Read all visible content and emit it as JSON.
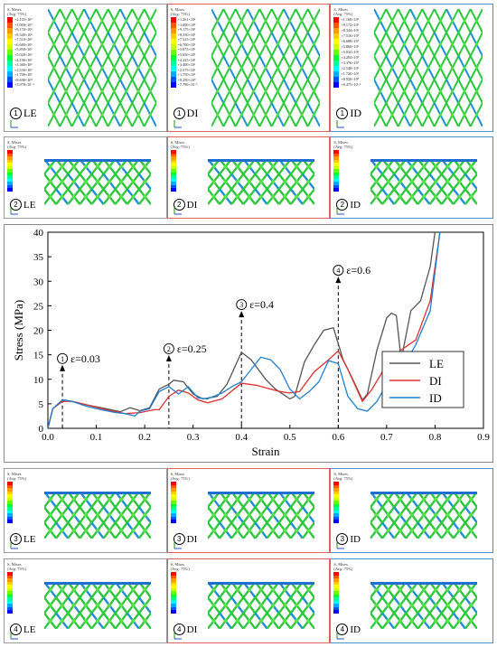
{
  "legend": {
    "title_line1": "S, Mises",
    "title_line2": "(Avg: 75%)",
    "colors": [
      "#ff0000",
      "#ff5500",
      "#ff9900",
      "#ffcc00",
      "#ffff00",
      "#ccff00",
      "#66ff00",
      "#00ff33",
      "#00ff99",
      "#00ffff",
      "#00aaff",
      "#0055ff",
      "#0000ff"
    ]
  },
  "rows": [
    {
      "panels": [
        {
          "num": "1",
          "name": "LE",
          "color": "#9a9a9a",
          "values": [
            "+2.103×10²",
            "+1.000×10²",
            "+9.170×10¹",
            "+8.340×10¹",
            "+7.510×10¹",
            "+6.680×10¹",
            "+5.850×10¹",
            "+5.020×10¹",
            "+4.190×10¹",
            "+3.360×10¹",
            "+2.530×10¹",
            "+1.700×10¹",
            "+8.698×10⁰",
            "+3.978×10⁻¹"
          ]
        },
        {
          "num": "1",
          "name": "DI",
          "color": "#e06060",
          "values": [
            "+1.261×10²",
            "+1.000×10²",
            "+9.175×10¹",
            "+8.350×10¹",
            "+7.525×10¹",
            "+6.700×10¹",
            "+5.875×10¹",
            "+5.050×10¹",
            "+4.225×10¹",
            "+3.400×10¹",
            "+2.575×10¹",
            "+1.750×10¹",
            "+9.250×10⁰",
            "+7.789×10⁻¹"
          ]
        },
        {
          "num": "1",
          "name": "ID",
          "color": "#4a90d0",
          "values": [
            "+1.100×10²",
            "+9.172×10¹",
            "+8.344×10¹",
            "+7.516×10¹",
            "+6.688×10¹",
            "+5.860×10¹",
            "+5.032×10¹",
            "+4.204×10¹",
            "+3.376×10¹",
            "+2.548×10¹",
            "+1.720×10¹",
            "+8.920×10⁰",
            "+6.475×10⁻¹"
          ]
        }
      ]
    },
    {
      "panels": [
        {
          "num": "2",
          "name": "LE",
          "color": "#9a9a9a"
        },
        {
          "num": "2",
          "name": "DI",
          "color": "#e06060"
        },
        {
          "num": "2",
          "name": "ID",
          "color": "#4a90d0"
        }
      ]
    },
    {
      "panels": [
        {
          "num": "3",
          "name": "LE",
          "color": "#9a9a9a"
        },
        {
          "num": "3",
          "name": "DI",
          "color": "#e06060"
        },
        {
          "num": "3",
          "name": "ID",
          "color": "#4a90d0"
        }
      ]
    },
    {
      "panels": [
        {
          "num": "4",
          "name": "LE",
          "color": "#9a9a9a"
        },
        {
          "num": "4",
          "name": "DI",
          "color": "#e06060"
        },
        {
          "num": "4",
          "name": "ID",
          "color": "#4a90d0"
        }
      ]
    }
  ],
  "chart_data": {
    "type": "line",
    "xlabel": "Strain",
    "ylabel": "Stress (MPa)",
    "xlim": [
      0,
      0.9
    ],
    "ylim": [
      0,
      40
    ],
    "xticks": [
      "0.0",
      "0.1",
      "0.2",
      "0.3",
      "0.4",
      "0.5",
      "0.6",
      "0.7",
      "0.8",
      "0.9"
    ],
    "yticks": [
      "0",
      "5",
      "10",
      "15",
      "20",
      "25",
      "30",
      "35",
      "40"
    ],
    "legend_position": "right",
    "series": [
      {
        "name": "LE",
        "color": "#555555",
        "points": [
          [
            0,
            0
          ],
          [
            0.01,
            4
          ],
          [
            0.03,
            5.8
          ],
          [
            0.05,
            5.5
          ],
          [
            0.08,
            4.8
          ],
          [
            0.12,
            4.0
          ],
          [
            0.15,
            3.4
          ],
          [
            0.17,
            4.2
          ],
          [
            0.19,
            3.6
          ],
          [
            0.21,
            4.2
          ],
          [
            0.23,
            8.0
          ],
          [
            0.25,
            9.0
          ],
          [
            0.26,
            9.8
          ],
          [
            0.28,
            9.5
          ],
          [
            0.3,
            7.0
          ],
          [
            0.32,
            6.0
          ],
          [
            0.35,
            6.5
          ],
          [
            0.37,
            9.0
          ],
          [
            0.4,
            15.5
          ],
          [
            0.42,
            14.0
          ],
          [
            0.45,
            10.0
          ],
          [
            0.47,
            8.0
          ],
          [
            0.5,
            6.0
          ],
          [
            0.51,
            6.5
          ],
          [
            0.53,
            13.5
          ],
          [
            0.55,
            17.0
          ],
          [
            0.57,
            20.0
          ],
          [
            0.59,
            20.5
          ],
          [
            0.61,
            14.0
          ],
          [
            0.63,
            10.0
          ],
          [
            0.65,
            5.8
          ],
          [
            0.66,
            7.0
          ],
          [
            0.68,
            16.0
          ],
          [
            0.7,
            22.5
          ],
          [
            0.71,
            23.5
          ],
          [
            0.72,
            23.0
          ],
          [
            0.73,
            14.0
          ],
          [
            0.75,
            24.0
          ],
          [
            0.77,
            26.0
          ],
          [
            0.79,
            33.0
          ],
          [
            0.8,
            40.0
          ]
        ]
      },
      {
        "name": "DI",
        "color": "#e03030",
        "points": [
          [
            0,
            0
          ],
          [
            0.01,
            4
          ],
          [
            0.03,
            5.5
          ],
          [
            0.05,
            5.5
          ],
          [
            0.08,
            4.8
          ],
          [
            0.12,
            3.8
          ],
          [
            0.16,
            3.0
          ],
          [
            0.19,
            3.2
          ],
          [
            0.22,
            3.8
          ],
          [
            0.23,
            3.8
          ],
          [
            0.25,
            6.5
          ],
          [
            0.27,
            7.8
          ],
          [
            0.29,
            7.2
          ],
          [
            0.31,
            5.8
          ],
          [
            0.33,
            5.2
          ],
          [
            0.36,
            6.0
          ],
          [
            0.4,
            9.2
          ],
          [
            0.43,
            8.8
          ],
          [
            0.46,
            8.0
          ],
          [
            0.48,
            7.5
          ],
          [
            0.5,
            7.2
          ],
          [
            0.52,
            7.5
          ],
          [
            0.55,
            11.5
          ],
          [
            0.58,
            14.0
          ],
          [
            0.6,
            15.8
          ],
          [
            0.62,
            12.0
          ],
          [
            0.65,
            5.5
          ],
          [
            0.67,
            8.0
          ],
          [
            0.7,
            13.0
          ],
          [
            0.73,
            16.0
          ],
          [
            0.76,
            18.0
          ],
          [
            0.79,
            26.0
          ],
          [
            0.81,
            40.0
          ]
        ]
      },
      {
        "name": "ID",
        "color": "#2080d0",
        "points": [
          [
            0,
            0
          ],
          [
            0.01,
            4
          ],
          [
            0.03,
            5.8
          ],
          [
            0.05,
            5.5
          ],
          [
            0.08,
            4.5
          ],
          [
            0.11,
            3.8
          ],
          [
            0.14,
            3.2
          ],
          [
            0.16,
            3.0
          ],
          [
            0.18,
            2.5
          ],
          [
            0.19,
            3.5
          ],
          [
            0.21,
            4.0
          ],
          [
            0.23,
            7.5
          ],
          [
            0.25,
            8.5
          ],
          [
            0.27,
            7.0
          ],
          [
            0.29,
            8.5
          ],
          [
            0.31,
            6.2
          ],
          [
            0.33,
            6.0
          ],
          [
            0.36,
            7.2
          ],
          [
            0.38,
            8.5
          ],
          [
            0.4,
            9.5
          ],
          [
            0.42,
            12.0
          ],
          [
            0.44,
            14.5
          ],
          [
            0.46,
            14.0
          ],
          [
            0.48,
            12.0
          ],
          [
            0.5,
            8.0
          ],
          [
            0.52,
            6.0
          ],
          [
            0.54,
            7.5
          ],
          [
            0.56,
            9.5
          ],
          [
            0.58,
            13.8
          ],
          [
            0.6,
            13.2
          ],
          [
            0.62,
            6.5
          ],
          [
            0.64,
            4.0
          ],
          [
            0.66,
            3.5
          ],
          [
            0.68,
            5.5
          ],
          [
            0.7,
            9.0
          ],
          [
            0.73,
            12.0
          ],
          [
            0.76,
            17.0
          ],
          [
            0.79,
            24.0
          ],
          [
            0.81,
            40.0
          ]
        ]
      }
    ],
    "annotations": [
      {
        "num": "1",
        "text": "ε=0.03",
        "x": 0.03,
        "y_top": 13.5,
        "y_bottom": 0
      },
      {
        "num": "2",
        "text": "ε=0.25",
        "x": 0.25,
        "y_top": 15.5,
        "y_bottom": 0
      },
      {
        "num": "3",
        "text": "ε=0.4",
        "x": 0.4,
        "y_top": 24.5,
        "y_bottom": 0
      },
      {
        "num": "4",
        "text": "ε=0.6",
        "x": 0.6,
        "y_top": 31.5,
        "y_bottom": 0
      }
    ]
  }
}
